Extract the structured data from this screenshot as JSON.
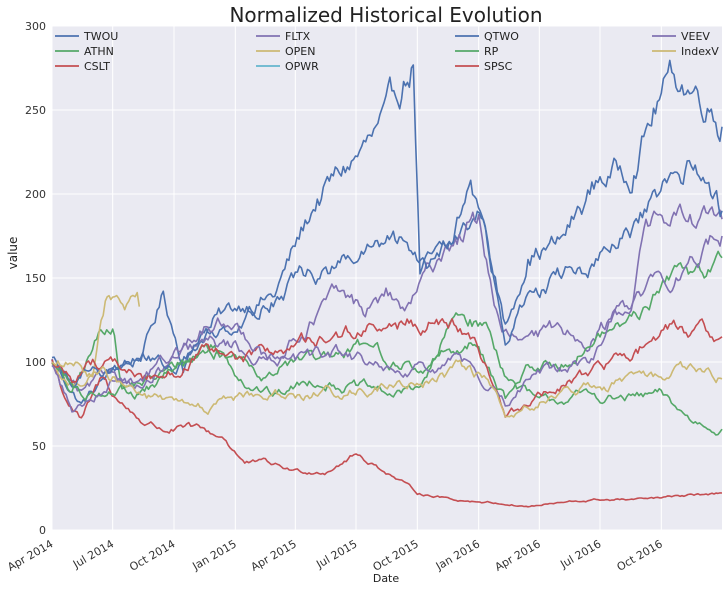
{
  "chart_data": {
    "type": "line",
    "title": "Normalized Historical Evolution",
    "xlabel": "Date",
    "ylabel": "value",
    "ylim": [
      0,
      300
    ],
    "xlim": [
      "2014-04-01",
      "2016-12-31"
    ],
    "y_ticks": [
      "0",
      "50",
      "100",
      "150",
      "200",
      "250",
      "300"
    ],
    "x_ticks": [
      {
        "date": "2014-04-01",
        "label": "Apr 2014"
      },
      {
        "date": "2014-07-01",
        "label": "Jul 2014"
      },
      {
        "date": "2014-10-01",
        "label": "Oct 2014"
      },
      {
        "date": "2015-01-01",
        "label": "Jan 2015"
      },
      {
        "date": "2015-04-01",
        "label": "Apr 2015"
      },
      {
        "date": "2015-07-01",
        "label": "Jul 2015"
      },
      {
        "date": "2015-10-01",
        "label": "Oct 2015"
      },
      {
        "date": "2016-01-01",
        "label": "Jan 2016"
      },
      {
        "date": "2016-04-01",
        "label": "Apr 2016"
      },
      {
        "date": "2016-07-01",
        "label": "Jul 2016"
      },
      {
        "date": "2016-10-01",
        "label": "Oct 2016"
      }
    ],
    "grid": true,
    "legend_placement": "top, four columns",
    "series": [
      {
        "name": "TWOU",
        "color": "#4C72B0",
        "points": [
          [
            "2014-04-01",
            100
          ],
          [
            "2014-05-15",
            75
          ],
          [
            "2014-07-01",
            95
          ],
          [
            "2014-08-15",
            105
          ],
          [
            "2014-09-15",
            140
          ],
          [
            "2014-10-15",
            100
          ],
          [
            "2014-12-01",
            125
          ],
          [
            "2015-01-15",
            135
          ],
          [
            "2015-03-01",
            140
          ],
          [
            "2015-05-01",
            195
          ],
          [
            "2015-06-15",
            215
          ],
          [
            "2015-08-15",
            240
          ],
          [
            "2015-09-25",
            280
          ],
          [
            "2015-10-05",
            155
          ],
          [
            "2015-11-15",
            165
          ],
          [
            "2016-01-05",
            190
          ],
          [
            "2016-02-10",
            120
          ],
          [
            "2016-03-15",
            165
          ],
          [
            "2016-05-01",
            170
          ],
          [
            "2016-07-01",
            210
          ],
          [
            "2016-08-15",
            215
          ],
          [
            "2016-10-01",
            260
          ],
          [
            "2016-10-20",
            270
          ],
          [
            "2016-12-15",
            255
          ],
          [
            "2016-12-31",
            240
          ]
        ]
      },
      {
        "name": "ATHN",
        "color": "#55A868",
        "points": [
          [
            "2014-04-01",
            100
          ],
          [
            "2014-05-01",
            80
          ],
          [
            "2014-06-10",
            115
          ],
          [
            "2014-07-01",
            125
          ],
          [
            "2014-07-15",
            85
          ],
          [
            "2014-09-01",
            90
          ],
          [
            "2014-10-15",
            100
          ],
          [
            "2014-12-01",
            110
          ],
          [
            "2015-01-15",
            90
          ],
          [
            "2015-03-01",
            80
          ],
          [
            "2015-05-01",
            90
          ],
          [
            "2015-07-01",
            85
          ],
          [
            "2015-09-01",
            80
          ],
          [
            "2015-10-15",
            90
          ],
          [
            "2015-12-01",
            130
          ],
          [
            "2016-01-15",
            120
          ],
          [
            "2016-02-15",
            90
          ],
          [
            "2016-04-01",
            75
          ],
          [
            "2016-06-01",
            80
          ],
          [
            "2016-08-01",
            78
          ],
          [
            "2016-10-01",
            80
          ],
          [
            "2016-11-15",
            65
          ],
          [
            "2016-12-31",
            60
          ]
        ]
      },
      {
        "name": "CSLT",
        "color": "#C44E52",
        "points": [
          [
            "2014-04-01",
            100
          ],
          [
            "2014-04-20",
            80
          ],
          [
            "2014-05-15",
            65
          ],
          [
            "2014-06-15",
            90
          ],
          [
            "2014-07-15",
            75
          ],
          [
            "2014-08-15",
            65
          ],
          [
            "2014-09-15",
            60
          ],
          [
            "2014-11-01",
            60
          ],
          [
            "2014-12-15",
            55
          ],
          [
            "2015-01-15",
            40
          ],
          [
            "2015-02-15",
            40
          ],
          [
            "2015-04-01",
            35
          ],
          [
            "2015-05-15",
            35
          ],
          [
            "2015-07-01",
            45
          ],
          [
            "2015-08-15",
            35
          ],
          [
            "2015-10-01",
            22
          ],
          [
            "2015-12-01",
            18
          ],
          [
            "2016-02-01",
            16
          ],
          [
            "2016-03-15",
            14
          ],
          [
            "2016-05-01",
            16
          ],
          [
            "2016-07-01",
            18
          ],
          [
            "2016-09-01",
            18
          ],
          [
            "2016-11-01",
            20
          ],
          [
            "2016-12-31",
            22
          ]
        ]
      },
      {
        "name": "FLTX",
        "color": "#8172B2",
        "points": [
          [
            "2014-04-01",
            100
          ],
          [
            "2014-05-15",
            80
          ],
          [
            "2014-07-01",
            95
          ],
          [
            "2014-08-15",
            85
          ],
          [
            "2014-10-01",
            100
          ],
          [
            "2014-11-15",
            110
          ],
          [
            "2015-01-01",
            110
          ],
          [
            "2015-02-15",
            100
          ],
          [
            "2015-04-01",
            115
          ],
          [
            "2015-06-01",
            140
          ],
          [
            "2015-07-15",
            130
          ],
          [
            "2015-08-15",
            140
          ],
          [
            "2015-09-15",
            130
          ],
          [
            "2015-10-15",
            150
          ],
          [
            "2015-11-15",
            170
          ],
          [
            "2016-01-01",
            185
          ],
          [
            "2016-02-05",
            115
          ],
          [
            "2016-03-15",
            110
          ],
          [
            "2016-05-01",
            120
          ],
          [
            "2016-06-15",
            115
          ],
          [
            "2016-08-01",
            130
          ],
          [
            "2016-08-20",
            140
          ],
          [
            "2016-09-05",
            185
          ],
          [
            "2016-12-31",
            185
          ]
        ]
      },
      {
        "name": "OPEN",
        "color": "#CCB974",
        "points": [
          [
            "2014-04-01",
            100
          ],
          [
            "2014-05-01",
            85
          ],
          [
            "2014-06-01",
            95
          ],
          [
            "2014-06-20",
            135
          ],
          [
            "2014-07-01",
            134
          ],
          [
            "2014-07-25",
            133
          ],
          [
            "2014-08-10",
            133
          ]
        ]
      },
      {
        "name": "OPWR",
        "color": "#64B5CD",
        "points": []
      },
      {
        "name": "QTWO",
        "color": "#4C72B0",
        "points": [
          [
            "2014-04-01",
            100
          ],
          [
            "2014-05-01",
            85
          ],
          [
            "2014-06-01",
            100
          ],
          [
            "2014-07-01",
            95
          ],
          [
            "2014-08-15",
            105
          ],
          [
            "2014-10-01",
            95
          ],
          [
            "2014-11-15",
            115
          ],
          [
            "2015-01-01",
            125
          ],
          [
            "2015-02-15",
            135
          ],
          [
            "2015-04-01",
            150
          ],
          [
            "2015-06-01",
            155
          ],
          [
            "2015-07-15",
            165
          ],
          [
            "2015-09-01",
            170
          ],
          [
            "2015-10-15",
            160
          ],
          [
            "2015-11-15",
            175
          ],
          [
            "2015-12-20",
            205
          ],
          [
            "2016-01-15",
            170
          ],
          [
            "2016-02-10",
            110
          ],
          [
            "2016-03-15",
            140
          ],
          [
            "2016-05-01",
            150
          ],
          [
            "2016-07-01",
            160
          ],
          [
            "2016-08-15",
            175
          ],
          [
            "2016-09-15",
            190
          ],
          [
            "2016-10-15",
            205
          ],
          [
            "2016-11-15",
            215
          ],
          [
            "2016-12-20",
            200
          ],
          [
            "2016-12-31",
            190
          ]
        ]
      },
      {
        "name": "RP",
        "color": "#55A868",
        "points": [
          [
            "2014-04-01",
            100
          ],
          [
            "2014-05-15",
            80
          ],
          [
            "2014-07-01",
            85
          ],
          [
            "2014-08-15",
            80
          ],
          [
            "2014-10-01",
            95
          ],
          [
            "2014-11-15",
            105
          ],
          [
            "2015-01-01",
            105
          ],
          [
            "2015-02-15",
            95
          ],
          [
            "2015-04-01",
            100
          ],
          [
            "2015-06-01",
            100
          ],
          [
            "2015-07-15",
            110
          ],
          [
            "2015-09-01",
            100
          ],
          [
            "2015-10-15",
            95
          ],
          [
            "2015-11-15",
            110
          ],
          [
            "2016-01-01",
            110
          ],
          [
            "2016-02-10",
            80
          ],
          [
            "2016-03-15",
            95
          ],
          [
            "2016-05-01",
            100
          ],
          [
            "2016-07-01",
            115
          ],
          [
            "2016-09-01",
            130
          ],
          [
            "2016-10-15",
            150
          ],
          [
            "2016-12-31",
            162
          ]
        ]
      },
      {
        "name": "SPSC",
        "color": "#C44E52",
        "points": [
          [
            "2014-04-01",
            100
          ],
          [
            "2014-05-01",
            90
          ],
          [
            "2014-06-01",
            100
          ],
          [
            "2014-07-01",
            100
          ],
          [
            "2014-08-15",
            90
          ],
          [
            "2014-10-01",
            95
          ],
          [
            "2014-11-15",
            105
          ],
          [
            "2015-01-01",
            100
          ],
          [
            "2015-02-15",
            105
          ],
          [
            "2015-04-01",
            110
          ],
          [
            "2015-06-01",
            115
          ],
          [
            "2015-07-15",
            120
          ],
          [
            "2015-09-01",
            120
          ],
          [
            "2015-10-15",
            125
          ],
          [
            "2015-12-01",
            120
          ],
          [
            "2016-01-01",
            105
          ],
          [
            "2016-02-10",
            70
          ],
          [
            "2016-03-15",
            75
          ],
          [
            "2016-05-01",
            85
          ],
          [
            "2016-07-01",
            95
          ],
          [
            "2016-08-15",
            105
          ],
          [
            "2016-10-01",
            115
          ],
          [
            "2016-11-01",
            120
          ],
          [
            "2016-12-31",
            115
          ]
        ]
      },
      {
        "name": "VEEV",
        "color": "#8172B2",
        "points": [
          [
            "2014-04-01",
            100
          ],
          [
            "2014-05-01",
            70
          ],
          [
            "2014-06-15",
            85
          ],
          [
            "2014-07-01",
            90
          ],
          [
            "2014-08-15",
            90
          ],
          [
            "2014-10-01",
            105
          ],
          [
            "2014-11-15",
            120
          ],
          [
            "2015-01-01",
            125
          ],
          [
            "2015-02-15",
            105
          ],
          [
            "2015-04-01",
            100
          ],
          [
            "2015-06-01",
            105
          ],
          [
            "2015-07-15",
            100
          ],
          [
            "2015-09-01",
            90
          ],
          [
            "2015-10-15",
            95
          ],
          [
            "2015-12-01",
            100
          ],
          [
            "2016-01-15",
            90
          ],
          [
            "2016-02-10",
            75
          ],
          [
            "2016-03-15",
            90
          ],
          [
            "2016-05-01",
            95
          ],
          [
            "2016-06-15",
            100
          ],
          [
            "2016-08-01",
            130
          ],
          [
            "2016-09-15",
            145
          ],
          [
            "2016-11-01",
            155
          ],
          [
            "2016-12-31",
            175
          ]
        ]
      },
      {
        "name": "IndexV",
        "color": "#CCB974",
        "points": [
          [
            "2014-04-01",
            100
          ],
          [
            "2014-05-15",
            95
          ],
          [
            "2014-07-01",
            90
          ],
          [
            "2014-08-15",
            80
          ],
          [
            "2014-10-01",
            75
          ],
          [
            "2014-11-15",
            72
          ],
          [
            "2015-01-01",
            78
          ],
          [
            "2015-02-15",
            82
          ],
          [
            "2015-04-01",
            80
          ],
          [
            "2015-06-01",
            82
          ],
          [
            "2015-07-15",
            85
          ],
          [
            "2015-09-01",
            85
          ],
          [
            "2015-10-15",
            88
          ],
          [
            "2015-12-01",
            95
          ],
          [
            "2016-01-15",
            90
          ],
          [
            "2016-02-10",
            65
          ],
          [
            "2016-03-15",
            75
          ],
          [
            "2016-05-01",
            80
          ],
          [
            "2016-07-01",
            85
          ],
          [
            "2016-09-01",
            90
          ],
          [
            "2016-10-15",
            95
          ],
          [
            "2016-12-31",
            90
          ]
        ]
      }
    ]
  }
}
